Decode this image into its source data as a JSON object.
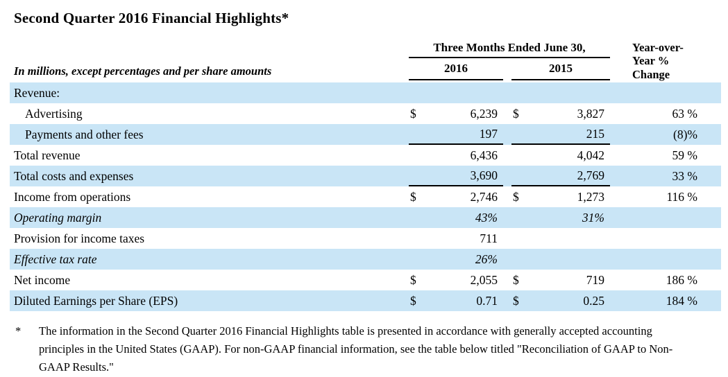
{
  "title": "Second Quarter 2016 Financial Highlights*",
  "table": {
    "group_header": "Three Months Ended June 30,",
    "col_2016": "2016",
    "col_2015": "2015",
    "yoy_header": "Year-over-\nYear %\nChange",
    "units_note": "In millions, except percentages and per share amounts",
    "rows": [
      {
        "label": "Revenue:",
        "d2016": "",
        "v2016": "",
        "d2015": "",
        "v2015": "",
        "yoy": "",
        "shaded": true,
        "italic": false,
        "indent": false,
        "underline": false
      },
      {
        "label": "Advertising",
        "d2016": "$",
        "v2016": "6,239",
        "d2015": "$",
        "v2015": "3,827",
        "yoy": "63 %",
        "shaded": false,
        "italic": false,
        "indent": true,
        "underline": false
      },
      {
        "label": "Payments and other fees",
        "d2016": "",
        "v2016": "197",
        "d2015": "",
        "v2015": "215",
        "yoy": "(8)%",
        "shaded": true,
        "italic": false,
        "indent": true,
        "underline": true
      },
      {
        "label": "Total revenue",
        "d2016": "",
        "v2016": "6,436",
        "d2015": "",
        "v2015": "4,042",
        "yoy": "59 %",
        "shaded": false,
        "italic": false,
        "indent": false,
        "underline": false
      },
      {
        "label": "Total costs and expenses",
        "d2016": "",
        "v2016": "3,690",
        "d2015": "",
        "v2015": "2,769",
        "yoy": "33 %",
        "shaded": true,
        "italic": false,
        "indent": false,
        "underline": true
      },
      {
        "label": "Income from operations",
        "d2016": "$",
        "v2016": "2,746",
        "d2015": "$",
        "v2015": "1,273",
        "yoy": "116 %",
        "shaded": false,
        "italic": false,
        "indent": false,
        "underline": false
      },
      {
        "label": "Operating margin",
        "d2016": "",
        "v2016": "43%",
        "d2015": "",
        "v2015": "31%",
        "yoy": "",
        "shaded": true,
        "italic": true,
        "indent": false,
        "underline": false
      },
      {
        "label": "Provision for income taxes",
        "d2016": "",
        "v2016": "711",
        "d2015": "",
        "v2015": "",
        "yoy": "",
        "shaded": false,
        "italic": false,
        "indent": false,
        "underline": false
      },
      {
        "label": "Effective tax rate",
        "d2016": "",
        "v2016": "26%",
        "d2015": "",
        "v2015": "",
        "yoy": "",
        "shaded": true,
        "italic": true,
        "indent": false,
        "underline": false
      },
      {
        "label": "Net income",
        "d2016": "$",
        "v2016": "2,055",
        "d2015": "$",
        "v2015": "719",
        "yoy": "186 %",
        "shaded": false,
        "italic": false,
        "indent": false,
        "underline": false
      },
      {
        "label": "Diluted Earnings per Share (EPS)",
        "d2016": "$",
        "v2016": "0.71",
        "d2015": "$",
        "v2015": "0.25",
        "yoy": "184 %",
        "shaded": true,
        "italic": false,
        "indent": false,
        "underline": false
      }
    ]
  },
  "footnote": {
    "marker": "*",
    "text": "The information in the Second Quarter 2016 Financial Highlights table is presented in accordance with generally accepted accounting principles in the United States (GAAP). For non-GAAP financial information, see the table below titled \"Reconciliation of GAAP to Non-GAAP Results.\""
  }
}
